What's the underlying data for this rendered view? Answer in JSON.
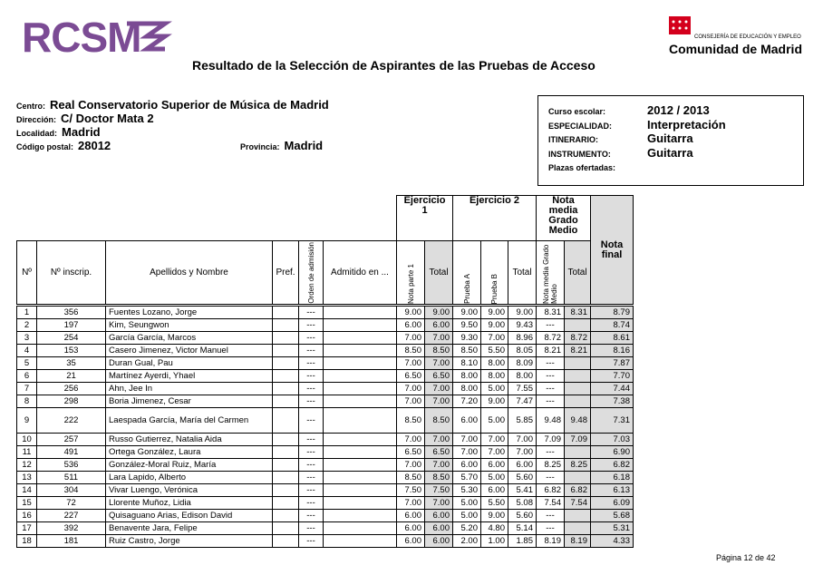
{
  "header": {
    "logo": "RCSM",
    "dept": "CONSEJERÍA DE EDUCACIÓN Y EMPLEO",
    "org": "Comunidad de Madrid",
    "title": "Resultado de la Selección de Aspirantes de las Pruebas de Acceso"
  },
  "center": {
    "fields": [
      {
        "label": "Centro:",
        "value": "Real Conservatorio Superior de Música de Madrid"
      },
      {
        "label": "Dirección:",
        "value": "C/ Doctor Mata 2"
      },
      {
        "label": "Localidad:",
        "value": "Madrid"
      },
      {
        "label": "Código postal:",
        "value": "28012"
      },
      {
        "label": "Provincia:",
        "value": "Madrid"
      }
    ]
  },
  "course": {
    "fields": [
      {
        "label": "Curso escolar:",
        "value": "2012 / 2013"
      },
      {
        "label": "ESPECIALIDAD:",
        "value": "Interpretación"
      },
      {
        "label": "ITINERARIO:",
        "value": "Guitarra"
      },
      {
        "label": "INSTRUMENTO:",
        "value": "Guitarra"
      },
      {
        "label": "Plazas ofertadas:"
      }
    ]
  },
  "table": {
    "groups": [
      "Ejercicio 1",
      "Ejercicio 2",
      "Nota media Grado Medio",
      "Nota final"
    ],
    "columns": [
      "Nº",
      "Nº inscrip.",
      "Apellidos y Nombre",
      "Pref.",
      "Orden de admisión",
      "Admitido en ...",
      "Nota parte 1",
      "Total",
      "Prueba A",
      "Prueba B",
      "Total",
      "Nota media Grado Medio",
      "Total"
    ],
    "rows": [
      [
        "1",
        "356",
        "Fuentes Lozano, Jorge",
        null,
        "---",
        null,
        "9.00",
        "9.00",
        "9.00",
        "9.00",
        "9.00",
        "8.31",
        "8.31",
        "8.79"
      ],
      [
        "2",
        "197",
        "Kim, Seungwon",
        null,
        "---",
        null,
        "6.00",
        "6.00",
        "9.50",
        "9.00",
        "9.43",
        "---",
        null,
        "8.74"
      ],
      [
        "3",
        "254",
        "García García, Marcos",
        null,
        "---",
        null,
        "7.00",
        "7.00",
        "9.30",
        "7.00",
        "8.96",
        "8.72",
        "8.72",
        "8.61"
      ],
      [
        "4",
        "153",
        "Casero Jimenez, Victor Manuel",
        null,
        "---",
        null,
        "8.50",
        "8.50",
        "8.50",
        "5.50",
        "8.05",
        "8.21",
        "8.21",
        "8.16"
      ],
      [
        "5",
        "35",
        "Duran Gual, Pau",
        null,
        "---",
        null,
        "7.00",
        "7.00",
        "8.10",
        "8.00",
        "8.09",
        "---",
        null,
        "7.87"
      ],
      [
        "6",
        "21",
        "Martínez Ayerdi, Yhael",
        null,
        "---",
        null,
        "6.50",
        "6.50",
        "8.00",
        "8.00",
        "8.00",
        "---",
        null,
        "7.70"
      ],
      [
        "7",
        "256",
        "Ahn, Jee In",
        null,
        "---",
        null,
        "7.00",
        "7.00",
        "8.00",
        "5.00",
        "7.55",
        "---",
        null,
        "7.44"
      ],
      [
        "8",
        "298",
        "Boria Jimenez, Cesar",
        null,
        "---",
        null,
        "7.00",
        "7.00",
        "7.20",
        "9.00",
        "7.47",
        "---",
        null,
        "7.38"
      ],
      [
        "9",
        "222",
        "Laespada García, María del Carmen",
        null,
        "---",
        null,
        "8.50",
        "8.50",
        "6.00",
        "5.00",
        "5.85",
        "9.48",
        "9.48",
        "7.31"
      ],
      [
        "10",
        "257",
        "Russo Gutierrez, Natalia Aida",
        null,
        "---",
        null,
        "7.00",
        "7.00",
        "7.00",
        "7.00",
        "7.00",
        "7.09",
        "7.09",
        "7.03"
      ],
      [
        "11",
        "491",
        "Ortega González, Laura",
        null,
        "---",
        null,
        "6.50",
        "6.50",
        "7.00",
        "7.00",
        "7.00",
        "---",
        null,
        "6.90"
      ],
      [
        "12",
        "536",
        "González-Moral Ruiz, María",
        null,
        "---",
        null,
        "7.00",
        "7.00",
        "6.00",
        "6.00",
        "6.00",
        "8.25",
        "8.25",
        "6.82"
      ],
      [
        "13",
        "511",
        "Lara Lapido, Alberto",
        null,
        "---",
        null,
        "8.50",
        "8.50",
        "5.70",
        "5.00",
        "5.60",
        "---",
        null,
        "6.18"
      ],
      [
        "14",
        "304",
        "Vivar Luengo, Verónica",
        null,
        "---",
        null,
        "7.50",
        "7.50",
        "5.30",
        "6.00",
        "5.41",
        "6.82",
        "6.82",
        "6.13"
      ],
      [
        "15",
        "72",
        "Llorente Muñoz, Lidia",
        null,
        "---",
        null,
        "7.00",
        "7.00",
        "5.00",
        "5.50",
        "5.08",
        "7.54",
        "7.54",
        "6.09"
      ],
      [
        "16",
        "227",
        "Quisaguano Arias, Edison David",
        null,
        "---",
        null,
        "6.00",
        "6.00",
        "5.00",
        "9.00",
        "5.60",
        "---",
        null,
        "5.68"
      ],
      [
        "17",
        "392",
        "Benavente Jara, Felipe",
        null,
        "---",
        null,
        "6.00",
        "6.00",
        "5.20",
        "4.80",
        "5.14",
        "---",
        null,
        "5.31"
      ],
      [
        "18",
        "181",
        "Ruiz Castro, Jorge",
        null,
        "---",
        null,
        "6.00",
        "6.00",
        "2.00",
        "1.00",
        "1.85",
        "8.19",
        "8.19",
        "4.33"
      ]
    ]
  },
  "footer": {
    "page": "Página 12 de 42"
  }
}
